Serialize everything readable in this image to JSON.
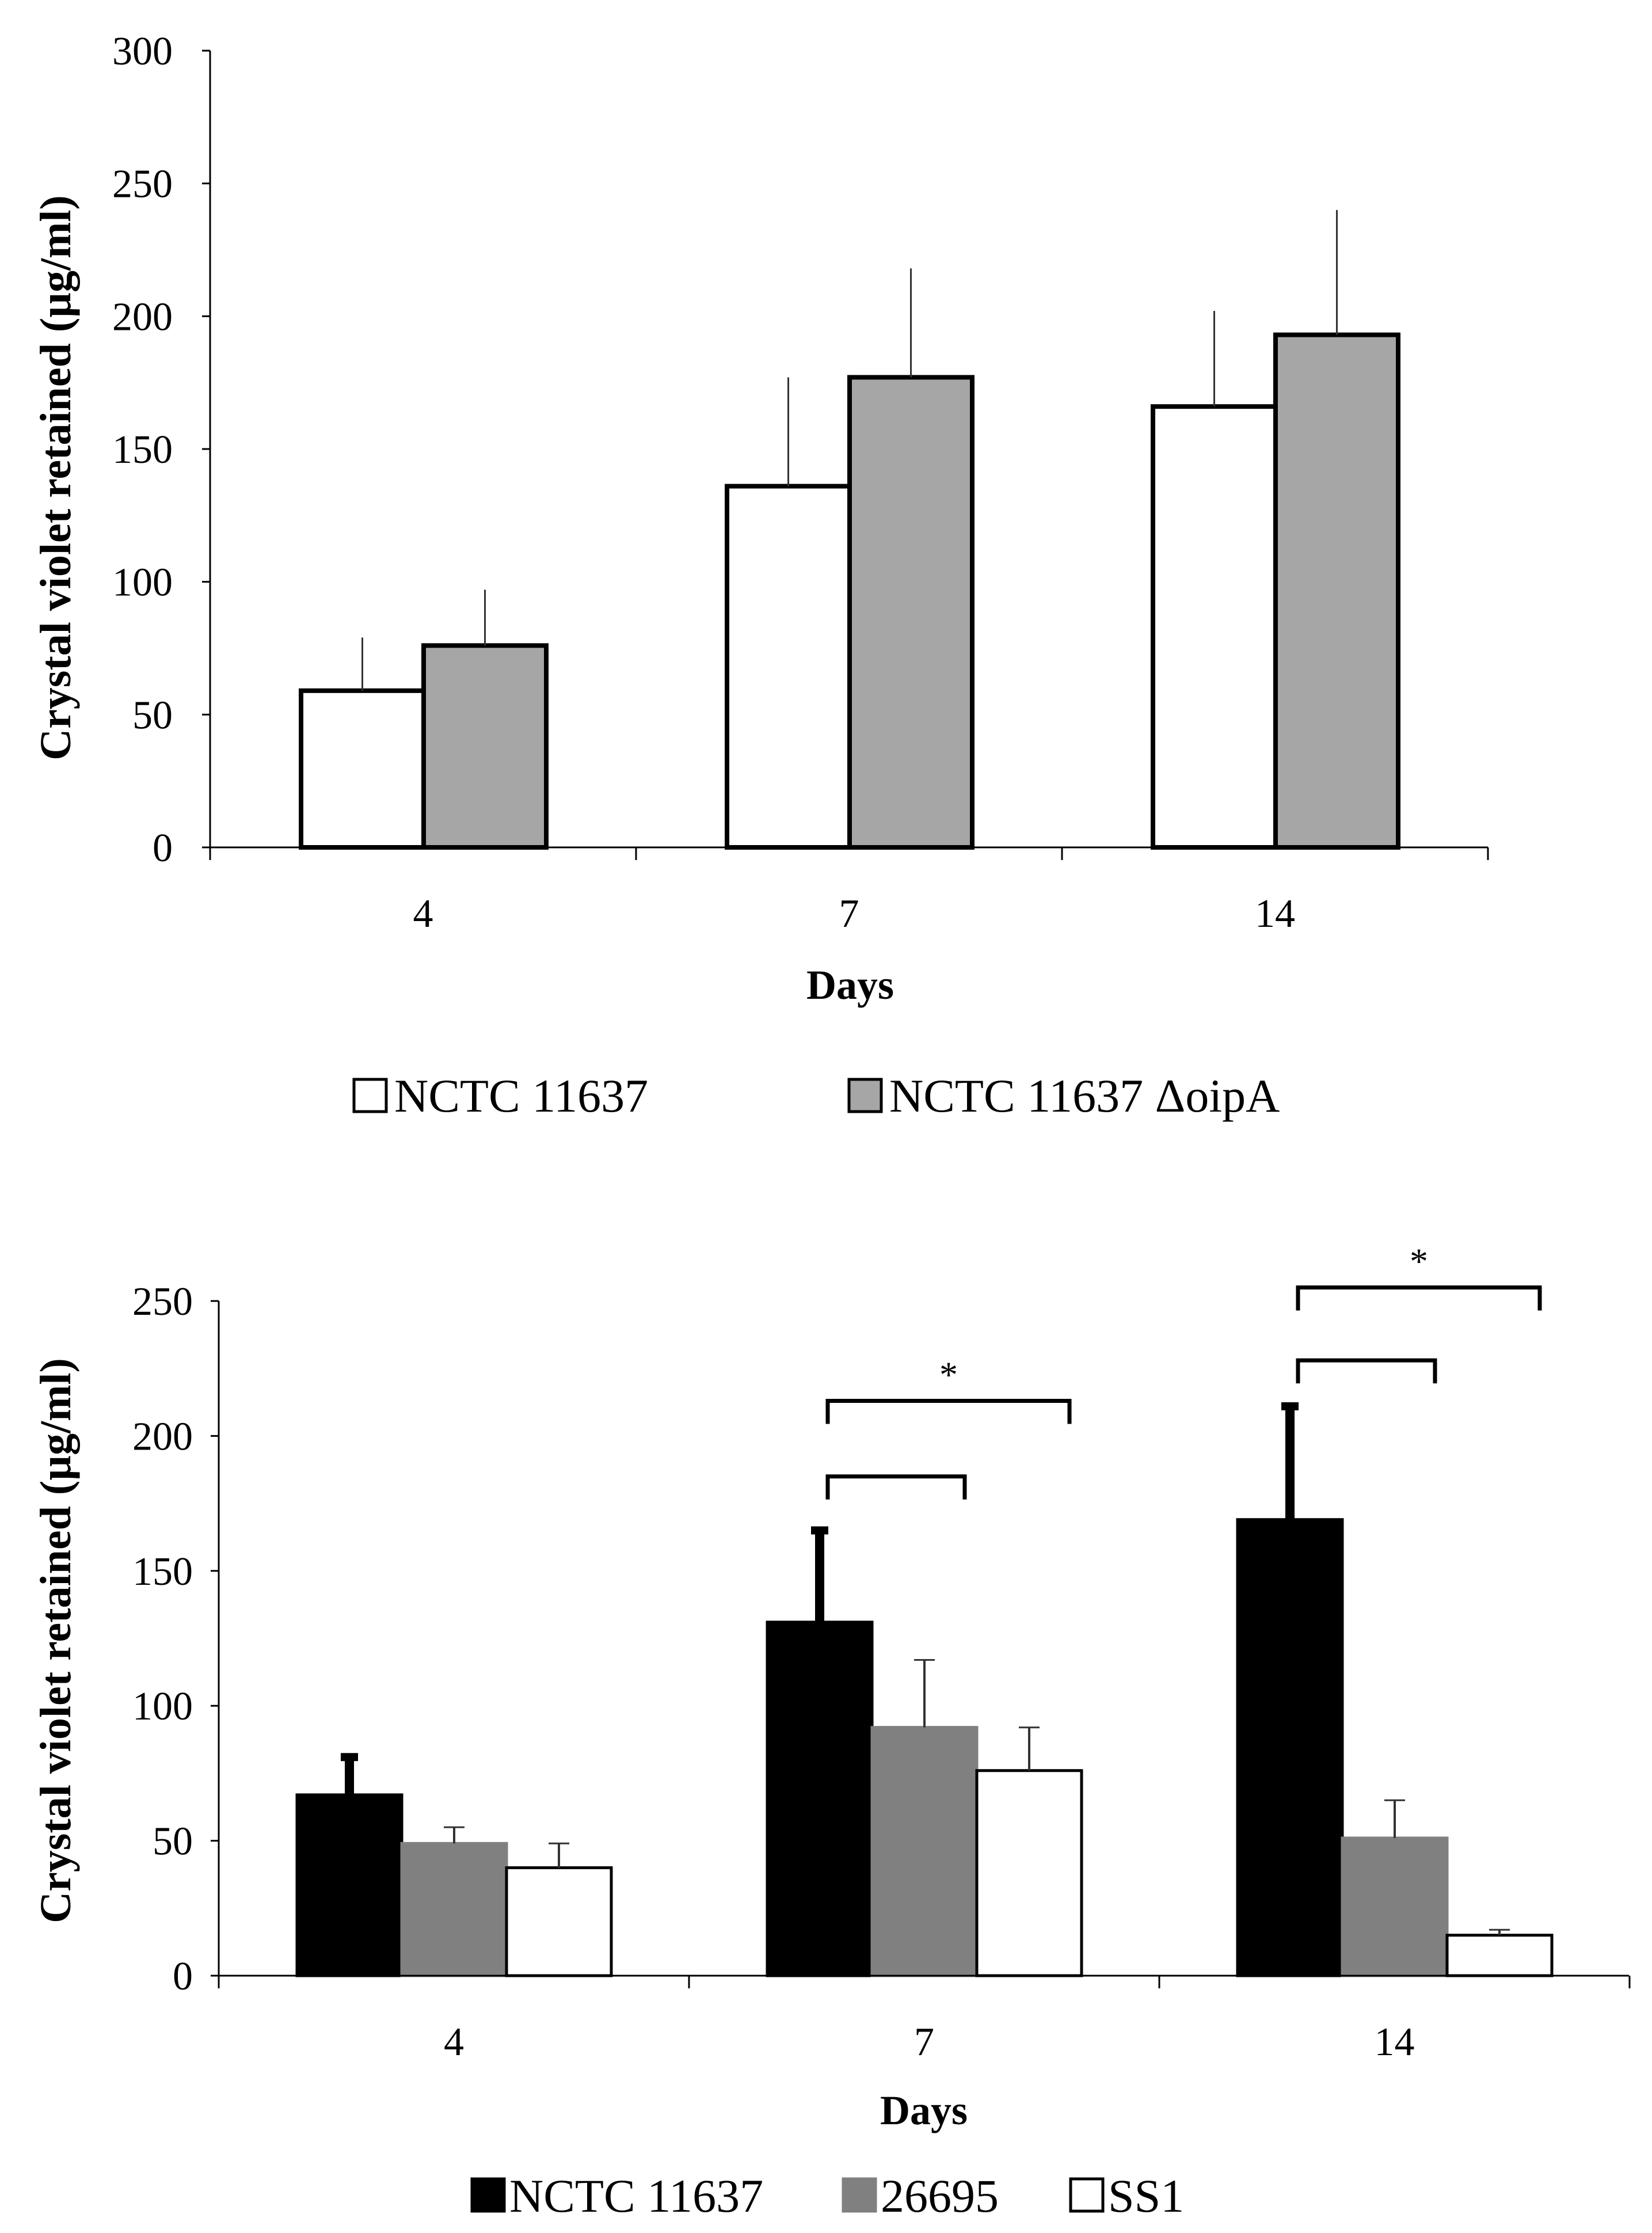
{
  "chart_data": [
    {
      "type": "bar",
      "title": "",
      "xlabel": "Days",
      "ylabel": "Crystal violet  retained (µg/ml)",
      "categories": [
        "4",
        "7",
        "14"
      ],
      "ylim": [
        0,
        300
      ],
      "yticks": [
        0,
        50,
        100,
        150,
        200,
        250,
        300
      ],
      "legend_position": "bottom-center",
      "series": [
        {
          "name": "NCTC 11637",
          "color": "#ffffff",
          "values": [
            59,
            136,
            166
          ],
          "errors": [
            20,
            41,
            36
          ]
        },
        {
          "name": "NCTC 11637 ΔoipA",
          "color": "#a6a6a6",
          "values": [
            76,
            177,
            193
          ],
          "errors": [
            21,
            41,
            47
          ]
        }
      ],
      "annotations": []
    },
    {
      "type": "bar",
      "title": "",
      "xlabel": "Days",
      "ylabel": "Crystal violet retained (µg/ml)",
      "categories": [
        "4",
        "7",
        "14"
      ],
      "ylim": [
        0,
        250
      ],
      "yticks": [
        0,
        50,
        100,
        150,
        200,
        250
      ],
      "legend_position": "bottom-center",
      "series": [
        {
          "name": "NCTC 11637",
          "color": "#000000",
          "values": [
            67,
            131,
            169
          ],
          "errors": [
            14,
            34,
            42
          ]
        },
        {
          "name": "26695",
          "color": "#808080",
          "values": [
            49,
            92,
            51
          ],
          "errors": [
            6,
            25,
            14
          ]
        },
        {
          "name": "SS1",
          "color": "#ffffff",
          "values": [
            40,
            76,
            15
          ],
          "errors": [
            9,
            16,
            2
          ]
        }
      ],
      "annotations": [
        {
          "category": "7",
          "from_series": 0,
          "to_series": 2,
          "level": 213,
          "label": "*"
        },
        {
          "category": "7",
          "from_series": 0,
          "to_series": 1,
          "level": 185,
          "label": ""
        },
        {
          "category": "14",
          "from_series": 0,
          "to_series": 2,
          "level": 255,
          "label": "*"
        },
        {
          "category": "14",
          "from_series": 0,
          "to_series": 1,
          "level": 228,
          "label": ""
        }
      ]
    }
  ]
}
